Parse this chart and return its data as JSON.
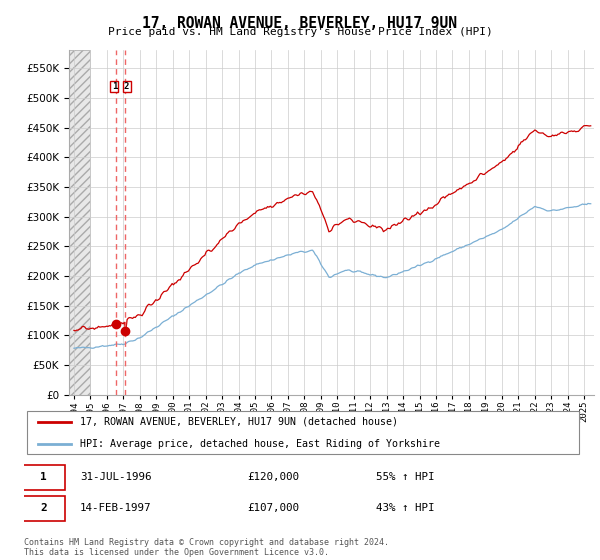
{
  "title": "17, ROWAN AVENUE, BEVERLEY, HU17 9UN",
  "subtitle": "Price paid vs. HM Land Registry's House Price Index (HPI)",
  "legend_line1": "17, ROWAN AVENUE, BEVERLEY, HU17 9UN (detached house)",
  "legend_line2": "HPI: Average price, detached house, East Riding of Yorkshire",
  "annotation1_date": "31-JUL-1996",
  "annotation1_price": "£120,000",
  "annotation1_hpi": "55% ↑ HPI",
  "annotation2_date": "14-FEB-1997",
  "annotation2_price": "£107,000",
  "annotation2_hpi": "43% ↑ HPI",
  "footer": "Contains HM Land Registry data © Crown copyright and database right 2024.\nThis data is licensed under the Open Government Licence v3.0.",
  "price_color": "#cc0000",
  "hpi_color": "#7bafd4",
  "vline_color": "#ee6666",
  "ylim": [
    0,
    580000
  ],
  "yticks": [
    0,
    50000,
    100000,
    150000,
    200000,
    250000,
    300000,
    350000,
    400000,
    450000,
    500000,
    550000
  ],
  "xlim_start": 1993.7,
  "xlim_end": 2025.6,
  "sale1_x": 1996.58,
  "sale1_y": 120000,
  "sale2_x": 1997.12,
  "sale2_y": 107000,
  "hatch_end": 1995.0,
  "grid_color": "#cccccc"
}
